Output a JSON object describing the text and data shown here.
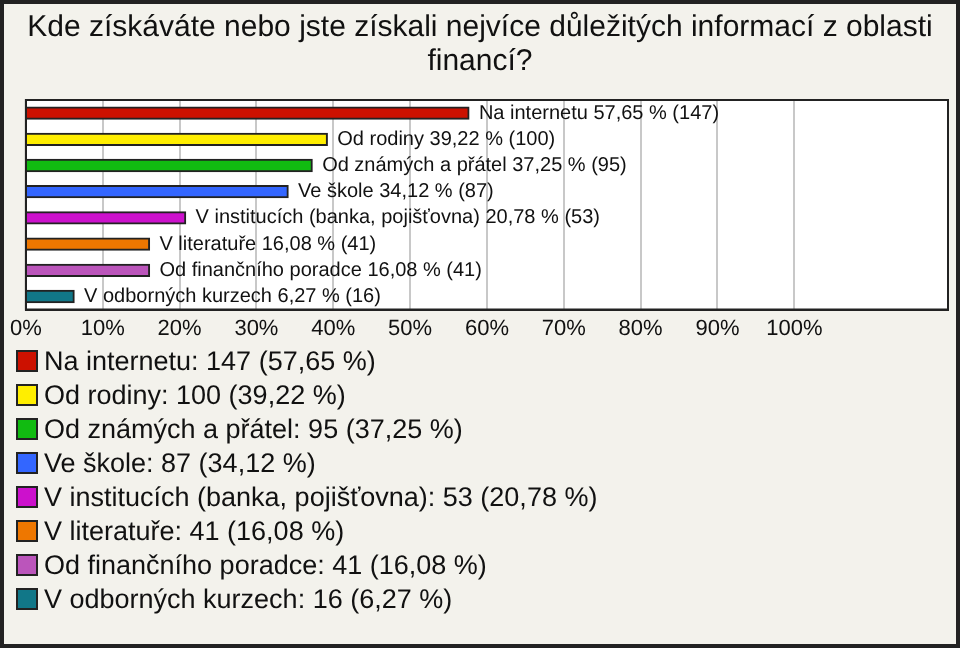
{
  "chart_data": {
    "type": "bar",
    "orientation": "horizontal",
    "title": "Kde získáváte nebo jste získali nejvíce důležitých informací z oblasti financí?",
    "categories": [
      "Na internetu",
      "Od rodiny",
      "Od známých a přátel",
      "Ve škole",
      "V institucích (banka, pojišťovna)",
      "V literatuře",
      "Od finančního poradce",
      "V odborných kurzech"
    ],
    "values": [
      57.65,
      39.22,
      37.25,
      34.12,
      20.78,
      16.08,
      16.08,
      6.27
    ],
    "value_labels": [
      "57,65 % (147)",
      "39,22 % (100)",
      "37,25 % (95)",
      "34,12 % (87)",
      "20,78 % (53)",
      "16,08 % (41)",
      "16,08 % (41)",
      "6,27 % (16)"
    ],
    "colors": [
      "#cc1100",
      "#ffee00",
      "#11bb11",
      "#3366ff",
      "#cc11cc",
      "#ee7700",
      "#bb55bb",
      "#117788"
    ],
    "xlim": [
      0,
      120
    ],
    "xticks": [
      {
        "value": 0,
        "label": "0%"
      },
      {
        "value": 10,
        "label": "10%"
      },
      {
        "value": 20,
        "label": "20%"
      },
      {
        "value": 30,
        "label": "30%"
      },
      {
        "value": 40,
        "label": "40%"
      },
      {
        "value": 50,
        "label": "50%"
      },
      {
        "value": 60,
        "label": "60%"
      },
      {
        "value": 70,
        "label": "70%"
      },
      {
        "value": 80,
        "label": "80%"
      },
      {
        "value": 90,
        "label": "90%"
      },
      {
        "value": 100,
        "label": "100%"
      }
    ],
    "grid": "x",
    "tick_labels": "x",
    "annotations": [
      "Na internetu: 147 (57,65 %)",
      "Od rodiny: 100 (39,22 %)",
      "Od známých a přátel: 95 (37,25 %)",
      "Ve škole: 87 (34,12 %)",
      "V institucích (banka, pojišťovna): 53 (20,78 %)",
      "V literatuře: 41 (16,08 %)",
      "Od finančního poradce: 41 (16,08 %)",
      "V odborných kurzech: 16 (6,27 %)"
    ]
  }
}
